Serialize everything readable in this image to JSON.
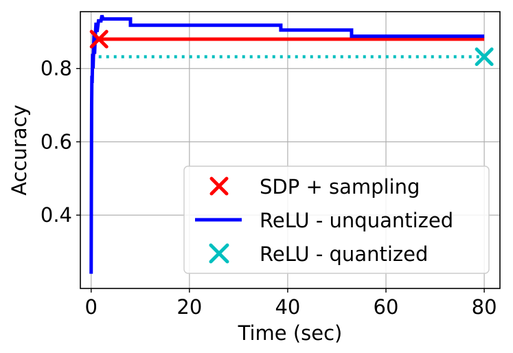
{
  "chart_data": {
    "type": "line",
    "xlabel": "Time (sec)",
    "ylabel": "Accuracy",
    "xlim": [
      -2.2,
      83.2
    ],
    "ylim": [
      0.2,
      0.955
    ],
    "xticks": [
      0,
      20,
      40,
      60,
      80
    ],
    "yticks": [
      0.4,
      0.6,
      0.8
    ],
    "xtick_labels": [
      "0",
      "20",
      "40",
      "60",
      "80"
    ],
    "ytick_labels": [
      "0.4",
      "0.6",
      "0.8"
    ],
    "grid": true,
    "legend_position": "lower-right",
    "series": [
      {
        "name": "SDP + sampling",
        "color": "#ff0000",
        "style": "solid",
        "points": [
          [
            0.3,
            0.8
          ],
          [
            0.7,
            0.88
          ],
          [
            80,
            0.88
          ]
        ],
        "marker": {
          "symbol": "x",
          "x": 1.6,
          "y": 0.88
        }
      },
      {
        "name": "ReLU - unquantized",
        "color": "#0000ff",
        "style": "solid-step",
        "points": [
          [
            0.0,
            0.24
          ],
          [
            0.05,
            0.5
          ],
          [
            0.1,
            0.7
          ],
          [
            0.15,
            0.78
          ],
          [
            0.2,
            0.76
          ],
          [
            0.3,
            0.84
          ],
          [
            0.4,
            0.8
          ],
          [
            0.5,
            0.86
          ],
          [
            0.6,
            0.9
          ],
          [
            0.7,
            0.84
          ],
          [
            0.8,
            0.88
          ],
          [
            1.0,
            0.925
          ],
          [
            1.2,
            0.9
          ],
          [
            1.5,
            0.93
          ],
          [
            2.0,
            0.93
          ],
          [
            2.2,
            0.945
          ],
          [
            2.4,
            0.935
          ],
          [
            8.0,
            0.935
          ],
          [
            8.0,
            0.918
          ],
          [
            38.6,
            0.918
          ],
          [
            38.6,
            0.905
          ],
          [
            53.0,
            0.905
          ],
          [
            53.0,
            0.888
          ],
          [
            80.0,
            0.888
          ]
        ]
      },
      {
        "name": "ReLU - quantized",
        "color": "#00bfbf",
        "style": "dotted",
        "points": [
          [
            0,
            0.832
          ],
          [
            80,
            0.832
          ]
        ],
        "marker": {
          "symbol": "x",
          "x": 80,
          "y": 0.832
        }
      }
    ]
  }
}
